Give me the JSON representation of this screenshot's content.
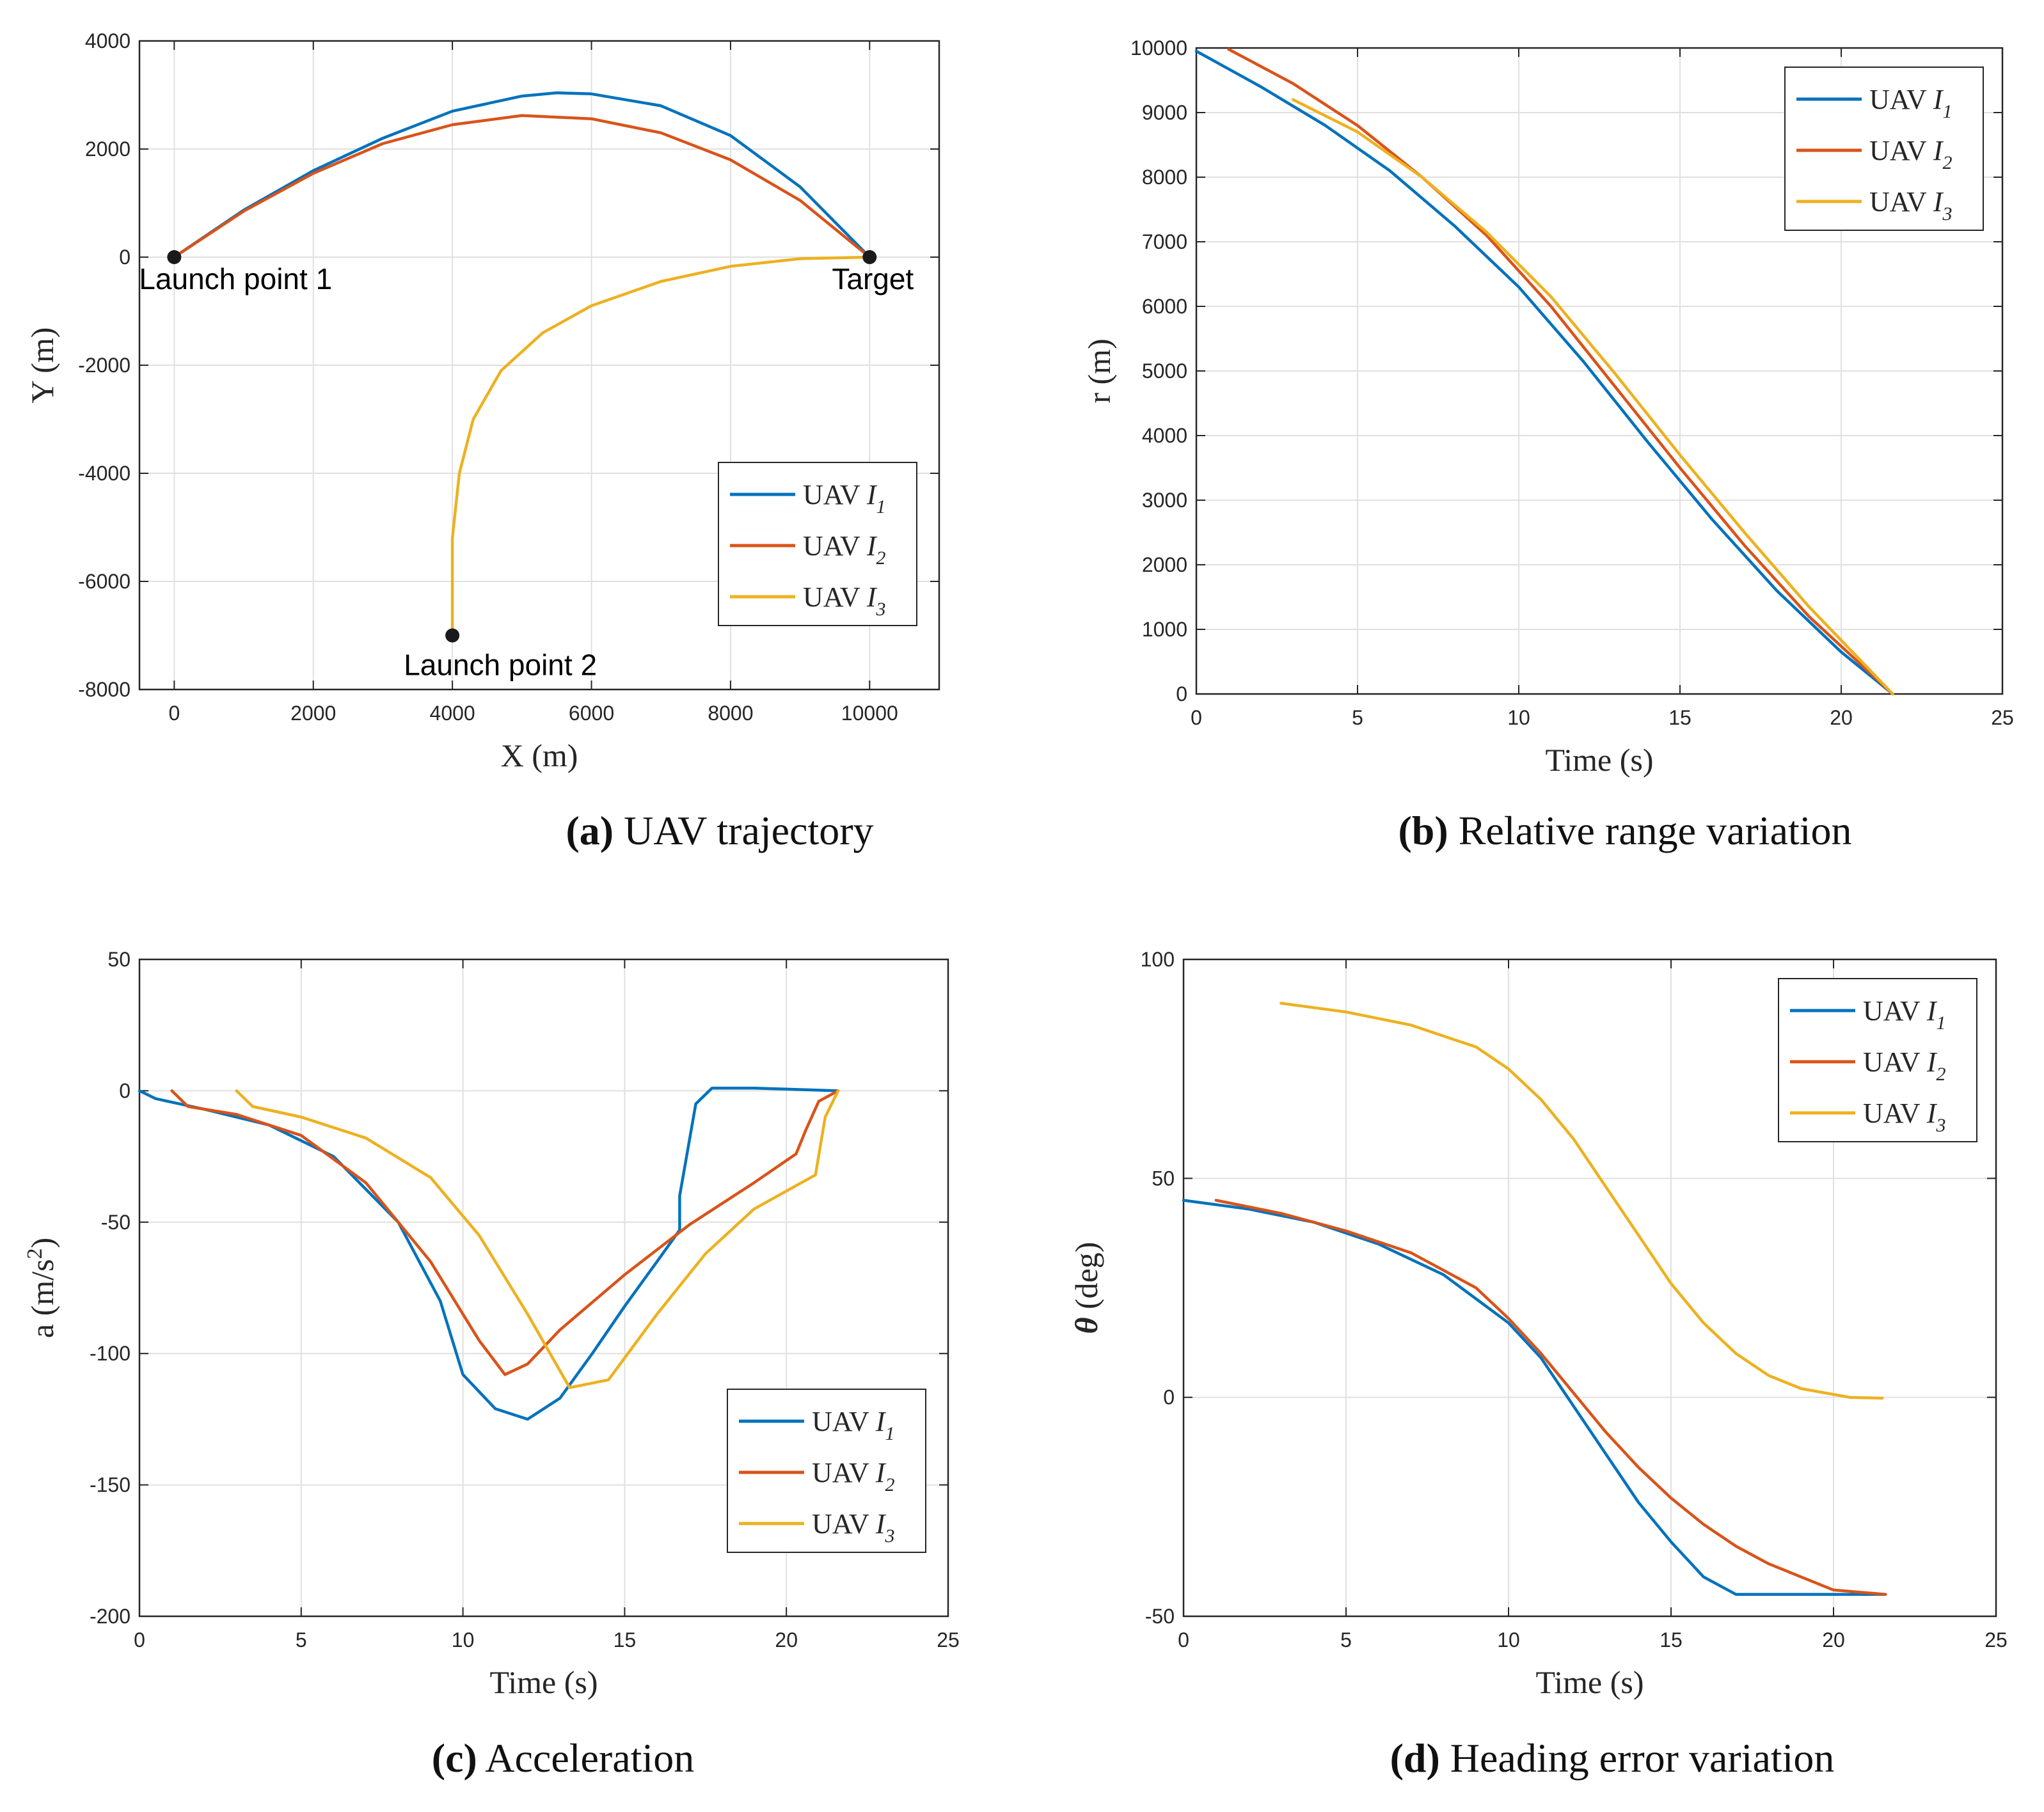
{
  "colors": {
    "uav1": "#0072BD",
    "uav2": "#D95319",
    "uav3": "#EDB120",
    "grid": "#E0E0E0",
    "axis": "#262626",
    "marker": "#1a1a1a"
  },
  "chart_data": [
    {
      "id": "a",
      "type": "line",
      "caption_letter": "(a)",
      "caption_text": "UAV trajectory",
      "xlabel": "X (m)",
      "ylabel": "Y (m)",
      "xlim": [
        -500,
        11000
      ],
      "ylim": [
        -8000,
        4000
      ],
      "xticks": [
        0,
        2000,
        4000,
        6000,
        8000,
        10000
      ],
      "yticks": [
        -8000,
        -6000,
        -4000,
        -2000,
        0,
        2000,
        4000
      ],
      "grid": true,
      "legend_position": "lower-right",
      "series": [
        {
          "name": "UAV",
          "sub": "1",
          "color_key": "uav1",
          "points": [
            [
              0,
              0
            ],
            [
              1000,
              870
            ],
            [
              2000,
              1600
            ],
            [
              3000,
              2200
            ],
            [
              4000,
              2700
            ],
            [
              5000,
              2980
            ],
            [
              5500,
              3040
            ],
            [
              6000,
              3020
            ],
            [
              7000,
              2800
            ],
            [
              8000,
              2250
            ],
            [
              9000,
              1300
            ],
            [
              10000,
              0
            ]
          ]
        },
        {
          "name": "UAV",
          "sub": "2",
          "color_key": "uav2",
          "points": [
            [
              0,
              0
            ],
            [
              1000,
              850
            ],
            [
              2000,
              1550
            ],
            [
              3000,
              2100
            ],
            [
              4000,
              2450
            ],
            [
              5000,
              2620
            ],
            [
              6000,
              2560
            ],
            [
              7000,
              2300
            ],
            [
              8000,
              1800
            ],
            [
              9000,
              1050
            ],
            [
              10000,
              0
            ]
          ]
        },
        {
          "name": "UAV",
          "sub": "3",
          "color_key": "uav3",
          "points": [
            [
              4000,
              -7000
            ],
            [
              4000,
              -5200
            ],
            [
              4100,
              -4000
            ],
            [
              4300,
              -3000
            ],
            [
              4700,
              -2100
            ],
            [
              5300,
              -1400
            ],
            [
              6000,
              -900
            ],
            [
              7000,
              -450
            ],
            [
              8000,
              -170
            ],
            [
              9000,
              -30
            ],
            [
              10000,
              0
            ]
          ]
        }
      ],
      "markers": [
        {
          "label": "Launch point 1",
          "x": 0,
          "y": 0
        },
        {
          "label": "Target",
          "x": 10000,
          "y": 0
        },
        {
          "label": "Launch point 2",
          "x": 4000,
          "y": -7000
        }
      ]
    },
    {
      "id": "b",
      "type": "line",
      "caption_letter": "(b)",
      "caption_text": "Relative range variation",
      "xlabel": "Time (s)",
      "ylabel": "r (m)",
      "xlim": [
        0,
        25
      ],
      "ylim": [
        0,
        10000
      ],
      "xticks": [
        0,
        5,
        10,
        15,
        20,
        25
      ],
      "yticks": [
        0,
        1000,
        2000,
        3000,
        4000,
        5000,
        6000,
        7000,
        8000,
        9000,
        10000
      ],
      "grid": true,
      "legend_position": "top-right",
      "series": [
        {
          "name": "UAV",
          "sub": "1",
          "color_key": "uav1",
          "points": [
            [
              0,
              9950
            ],
            [
              2,
              9400
            ],
            [
              4,
              8800
            ],
            [
              6,
              8100
            ],
            [
              8,
              7250
            ],
            [
              10,
              6300
            ],
            [
              12,
              5150
            ],
            [
              14,
              3900
            ],
            [
              16,
              2700
            ],
            [
              18,
              1600
            ],
            [
              20,
              650
            ],
            [
              21.6,
              0
            ]
          ]
        },
        {
          "name": "UAV",
          "sub": "2",
          "color_key": "uav2",
          "points": [
            [
              1,
              9980
            ],
            [
              3,
              9450
            ],
            [
              5,
              8800
            ],
            [
              7,
              8000
            ],
            [
              9,
              7100
            ],
            [
              11,
              6000
            ],
            [
              13,
              4750
            ],
            [
              15,
              3500
            ],
            [
              17,
              2300
            ],
            [
              19,
              1200
            ],
            [
              21.6,
              0
            ]
          ]
        },
        {
          "name": "UAV",
          "sub": "3",
          "color_key": "uav3",
          "points": [
            [
              3,
              9200
            ],
            [
              5,
              8700
            ],
            [
              7,
              8000
            ],
            [
              9,
              7150
            ],
            [
              11,
              6150
            ],
            [
              13,
              4950
            ],
            [
              15,
              3700
            ],
            [
              17,
              2500
            ],
            [
              19,
              1350
            ],
            [
              21.6,
              0
            ]
          ]
        }
      ]
    },
    {
      "id": "c",
      "type": "line",
      "caption_letter": "(c)",
      "caption_text": "Acceleration",
      "xlabel": "Time (s)",
      "ylabel": "a (m/s",
      "ylabel_sup": "2",
      "ylabel_end": ")",
      "xlim": [
        0,
        25
      ],
      "ylim": [
        -200,
        50
      ],
      "xticks": [
        0,
        5,
        10,
        15,
        20,
        25
      ],
      "yticks": [
        -200,
        -150,
        -100,
        -50,
        0,
        50
      ],
      "grid": true,
      "legend_position": "lower-right",
      "series": [
        {
          "name": "UAV",
          "sub": "1",
          "color_key": "uav1",
          "points": [
            [
              0,
              0
            ],
            [
              0.5,
              -3
            ],
            [
              2,
              -7
            ],
            [
              4,
              -13
            ],
            [
              6,
              -25
            ],
            [
              8,
              -50
            ],
            [
              9.3,
              -80
            ],
            [
              10,
              -108
            ],
            [
              11,
              -121
            ],
            [
              12,
              -125
            ],
            [
              13,
              -117
            ],
            [
              14,
              -100
            ],
            [
              15,
              -82
            ],
            [
              16,
              -65
            ],
            [
              16.7,
              -53
            ],
            [
              16.7,
              -40
            ],
            [
              17.2,
              -5
            ],
            [
              17.7,
              1
            ],
            [
              19,
              1
            ],
            [
              21.6,
              0
            ]
          ]
        },
        {
          "name": "UAV",
          "sub": "2",
          "color_key": "uav2",
          "points": [
            [
              1,
              0
            ],
            [
              1.5,
              -6
            ],
            [
              3,
              -9
            ],
            [
              5,
              -17
            ],
            [
              7,
              -35
            ],
            [
              9,
              -65
            ],
            [
              10.5,
              -95
            ],
            [
              11.3,
              -108
            ],
            [
              12,
              -104
            ],
            [
              13,
              -91
            ],
            [
              15,
              -70
            ],
            [
              17,
              -51
            ],
            [
              19,
              -35
            ],
            [
              20.3,
              -24
            ],
            [
              20.6,
              -15
            ],
            [
              21,
              -4
            ],
            [
              21.6,
              0
            ]
          ]
        },
        {
          "name": "UAV",
          "sub": "3",
          "color_key": "uav3",
          "points": [
            [
              3,
              0
            ],
            [
              3.5,
              -6
            ],
            [
              5,
              -10
            ],
            [
              7,
              -18
            ],
            [
              9,
              -33
            ],
            [
              10.5,
              -55
            ],
            [
              12,
              -85
            ],
            [
              13.3,
              -113
            ],
            [
              14.5,
              -110
            ],
            [
              16,
              -85
            ],
            [
              17.5,
              -62
            ],
            [
              19,
              -45
            ],
            [
              20.9,
              -32
            ],
            [
              21.2,
              -10
            ],
            [
              21.6,
              0
            ]
          ]
        }
      ]
    },
    {
      "id": "d",
      "type": "line",
      "caption_letter": "(d)",
      "caption_text": "Heading error variation",
      "xlabel": "Time (s)",
      "ylabel": "θ",
      "ylabel_end": " (deg)",
      "xlim": [
        0,
        25
      ],
      "ylim": [
        -50,
        100
      ],
      "xticks": [
        0,
        5,
        10,
        15,
        20,
        25
      ],
      "yticks": [
        -50,
        0,
        50,
        100
      ],
      "grid": true,
      "legend_position": "top-right",
      "series": [
        {
          "name": "UAV",
          "sub": "1",
          "color_key": "uav1",
          "points": [
            [
              0,
              45
            ],
            [
              2,
              43
            ],
            [
              4,
              40
            ],
            [
              6,
              35
            ],
            [
              8,
              28
            ],
            [
              10,
              17
            ],
            [
              11,
              9
            ],
            [
              12,
              -2
            ],
            [
              13,
              -13
            ],
            [
              14,
              -24
            ],
            [
              15,
              -33
            ],
            [
              16,
              -41
            ],
            [
              17,
              -45
            ],
            [
              18,
              -45
            ],
            [
              20,
              -45
            ],
            [
              21.6,
              -45
            ]
          ]
        },
        {
          "name": "UAV",
          "sub": "2",
          "color_key": "uav2",
          "points": [
            [
              1,
              45
            ],
            [
              3,
              42
            ],
            [
              5,
              38
            ],
            [
              7,
              33
            ],
            [
              9,
              25
            ],
            [
              10,
              18
            ],
            [
              11,
              10
            ],
            [
              12,
              1
            ],
            [
              13,
              -8
            ],
            [
              14,
              -16
            ],
            [
              15,
              -23
            ],
            [
              16,
              -29
            ],
            [
              17,
              -34
            ],
            [
              18,
              -38
            ],
            [
              19,
              -41
            ],
            [
              20,
              -44
            ],
            [
              21.6,
              -45
            ]
          ]
        },
        {
          "name": "UAV",
          "sub": "3",
          "color_key": "uav3",
          "points": [
            [
              3,
              90
            ],
            [
              5,
              88
            ],
            [
              7,
              85
            ],
            [
              9,
              80
            ],
            [
              10,
              75
            ],
            [
              11,
              68
            ],
            [
              12,
              59
            ],
            [
              13,
              48
            ],
            [
              14,
              37
            ],
            [
              15,
              26
            ],
            [
              16,
              17
            ],
            [
              17,
              10
            ],
            [
              18,
              5
            ],
            [
              19,
              2
            ],
            [
              20.5,
              0
            ],
            [
              21.5,
              -0.2
            ]
          ]
        }
      ]
    }
  ]
}
